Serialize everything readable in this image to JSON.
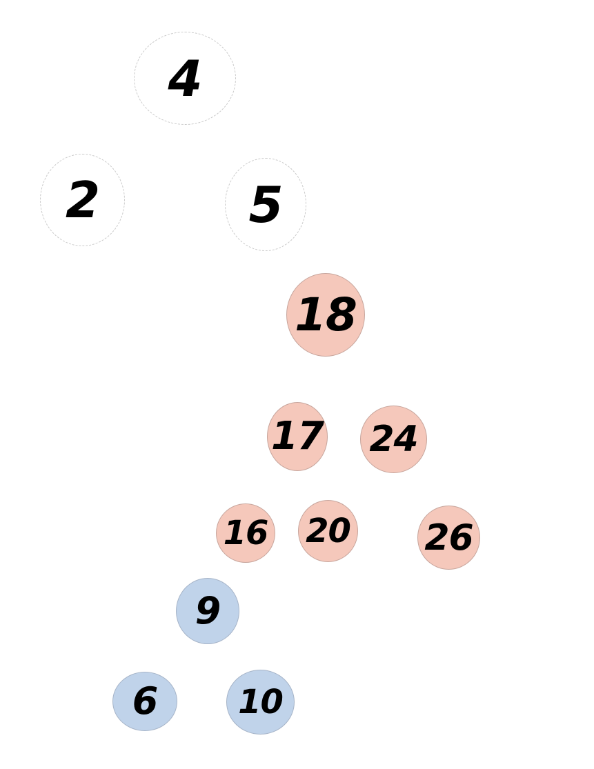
{
  "diagram": {
    "colors": {
      "white_node": "#ffffff",
      "pink_node": "#f5c8bb",
      "blue_node": "#c0d3ea",
      "text": "#000000"
    },
    "nodes": [
      {
        "id": "n4",
        "label": "4",
        "color": "white"
      },
      {
        "id": "n2",
        "label": "2",
        "color": "white"
      },
      {
        "id": "n5",
        "label": "5",
        "color": "white"
      },
      {
        "id": "n18",
        "label": "18",
        "color": "pink"
      },
      {
        "id": "n17",
        "label": "17",
        "color": "pink"
      },
      {
        "id": "n24",
        "label": "24",
        "color": "pink"
      },
      {
        "id": "n16",
        "label": "16",
        "color": "pink"
      },
      {
        "id": "n20",
        "label": "20",
        "color": "pink"
      },
      {
        "id": "n26",
        "label": "26",
        "color": "pink"
      },
      {
        "id": "n9",
        "label": "9",
        "color": "blue"
      },
      {
        "id": "n6",
        "label": "6",
        "color": "blue"
      },
      {
        "id": "n10",
        "label": "10",
        "color": "blue"
      }
    ]
  }
}
